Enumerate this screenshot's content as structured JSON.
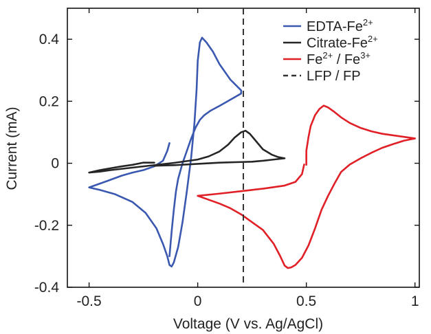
{
  "chart_data": {
    "type": "line",
    "xlabel": "Voltage (V vs. Ag/AgCl)",
    "ylabel": "Current (mA)",
    "xlim": [
      -0.6,
      1.02
    ],
    "ylim": [
      -0.4,
      0.5
    ],
    "x_ticks": [
      {
        "value": -0.5,
        "label": "-0.5"
      },
      {
        "value": 0,
        "label": "0"
      },
      {
        "value": 0.5,
        "label": "0.5"
      },
      {
        "value": 1,
        "label": "1"
      }
    ],
    "y_ticks": [
      {
        "value": -0.4,
        "label": "-0.4"
      },
      {
        "value": -0.2,
        "label": "-0.2"
      },
      {
        "value": 0,
        "label": "0"
      },
      {
        "value": 0.2,
        "label": "0.2"
      },
      {
        "value": 0.4,
        "label": "0.4"
      }
    ],
    "grid": false,
    "legend_position": "top-right",
    "series": [
      {
        "name": "EDTA-Fe",
        "name_sup": "2+",
        "color": "#3a58b0",
        "dash": "solid",
        "x": [
          -0.13,
          -0.14,
          -0.16,
          -0.2,
          -0.25,
          -0.3,
          -0.35,
          -0.42,
          -0.5,
          -0.45,
          -0.38,
          -0.3,
          -0.24,
          -0.19,
          -0.16,
          -0.14,
          -0.13,
          -0.12,
          -0.11,
          -0.09,
          -0.07,
          -0.05,
          -0.03,
          -0.015,
          -0.005,
          0.0,
          0.01,
          0.02,
          0.04,
          0.07,
          0.1,
          0.15,
          0.2,
          0.2,
          0.15,
          0.1,
          0.06,
          0.03,
          0.01,
          -0.01,
          -0.03,
          -0.05,
          -0.07,
          -0.09,
          -0.1,
          -0.11,
          -0.12,
          -0.13
        ],
        "y": [
          0.065,
          0.04,
          0.008,
          -0.01,
          -0.022,
          -0.03,
          -0.04,
          -0.058,
          -0.078,
          -0.086,
          -0.1,
          -0.125,
          -0.16,
          -0.21,
          -0.26,
          -0.3,
          -0.328,
          -0.333,
          -0.32,
          -0.27,
          -0.19,
          -0.09,
          0.02,
          0.13,
          0.24,
          0.33,
          0.39,
          0.405,
          0.39,
          0.36,
          0.32,
          0.27,
          0.235,
          0.225,
          0.205,
          0.185,
          0.17,
          0.155,
          0.14,
          0.115,
          0.08,
          0.04,
          0.0,
          -0.05,
          -0.09,
          -0.15,
          -0.22,
          -0.3
        ]
      },
      {
        "name": "Citrate-Fe",
        "name_sup": "2+",
        "color": "#262626",
        "dash": "solid",
        "x": [
          -0.2,
          -0.25,
          -0.3,
          -0.35,
          -0.4,
          -0.45,
          -0.5,
          -0.45,
          -0.4,
          -0.3,
          -0.2,
          -0.1,
          0.0,
          0.05,
          0.1,
          0.14,
          0.17,
          0.2,
          0.22,
          0.24,
          0.27,
          0.3,
          0.34,
          0.37,
          0.4,
          0.35,
          0.3,
          0.25,
          0.2,
          0.15,
          0.1,
          0.05,
          0.0,
          -0.05,
          -0.1,
          -0.15,
          -0.2
        ],
        "y": [
          0.002,
          0.002,
          -0.005,
          -0.01,
          -0.016,
          -0.022,
          -0.03,
          -0.027,
          -0.022,
          -0.014,
          -0.006,
          0.002,
          0.012,
          0.022,
          0.038,
          0.06,
          0.083,
          0.1,
          0.105,
          0.095,
          0.07,
          0.045,
          0.028,
          0.02,
          0.016,
          0.012,
          0.008,
          0.005,
          0.004,
          0.003,
          0.002,
          0.0,
          -0.002,
          -0.004,
          -0.006,
          -0.007,
          -0.008
        ]
      },
      {
        "name": "Fe",
        "name_sup": "2+",
        "name_mid": " / Fe",
        "name_sup2": "3+",
        "color": "#e01f26",
        "dash": "solid",
        "x": [
          0.5,
          0.5,
          0.51,
          0.52,
          0.54,
          0.56,
          0.58,
          0.6,
          0.63,
          0.66,
          0.7,
          0.75,
          0.8,
          0.85,
          0.9,
          0.95,
          1.0,
          0.95,
          0.9,
          0.85,
          0.8,
          0.75,
          0.7,
          0.66,
          0.63,
          0.6,
          0.57,
          0.54,
          0.51,
          0.48,
          0.45,
          0.43,
          0.415,
          0.4,
          0.38,
          0.35,
          0.3,
          0.25,
          0.2,
          0.15,
          0.1,
          0.0,
          0.1,
          0.2,
          0.3,
          0.4,
          0.45,
          0.48,
          0.49
        ],
        "y": [
          -0.005,
          0.04,
          0.085,
          0.12,
          0.155,
          0.175,
          0.186,
          0.18,
          0.165,
          0.148,
          0.13,
          0.114,
          0.103,
          0.095,
          0.09,
          0.085,
          0.08,
          0.073,
          0.062,
          0.05,
          0.034,
          0.016,
          -0.004,
          -0.028,
          -0.065,
          -0.105,
          -0.15,
          -0.21,
          -0.265,
          -0.305,
          -0.328,
          -0.336,
          -0.338,
          -0.33,
          -0.3,
          -0.26,
          -0.215,
          -0.19,
          -0.165,
          -0.145,
          -0.13,
          -0.105,
          -0.098,
          -0.09,
          -0.082,
          -0.072,
          -0.06,
          -0.035,
          -0.004
        ]
      },
      {
        "name": "LFP / FP",
        "color": "#333333",
        "dash": "dashed",
        "vertical_line_x": 0.21
      }
    ]
  }
}
